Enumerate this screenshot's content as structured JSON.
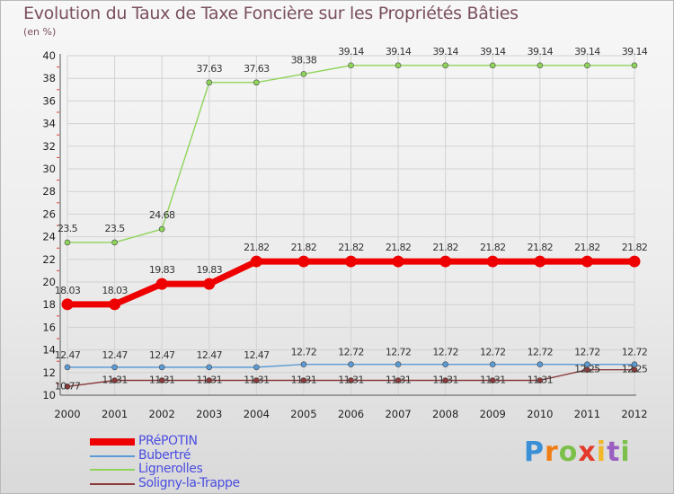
{
  "header": {
    "title": "Evolution du Taux de Taxe Foncière sur les Propriétés Bâties",
    "unit": "(en %)"
  },
  "brand": {
    "letters": [
      "P",
      "r",
      "o",
      "x",
      "i",
      "t",
      "i"
    ],
    "colors": [
      "#3a8fd6",
      "#f07d14",
      "#7cc04a",
      "#e23a2b",
      "#f0b82a",
      "#9a5fc0",
      "#7cc04a"
    ]
  },
  "colors": {
    "grid": "#d2d2d2",
    "axis_text": "#222222",
    "label_text": "#333333"
  },
  "chart_data": {
    "type": "line",
    "title": "Evolution du Taux de Taxe Foncière sur les Propriétés Bâties",
    "ylabel": "(en %)",
    "xlabel": "",
    "ylim": [
      10,
      40
    ],
    "yticks": [
      10,
      12,
      14,
      16,
      18,
      20,
      22,
      24,
      26,
      28,
      30,
      32,
      34,
      36,
      38,
      40
    ],
    "categories": [
      "2000",
      "2001",
      "2002",
      "2003",
      "2004",
      "2005",
      "2006",
      "2007",
      "2008",
      "2009",
      "2010",
      "2011",
      "2012"
    ],
    "grid": true,
    "legend_position": "bottom-left",
    "series": [
      {
        "name": "PRéPOTIN",
        "color": "#ee0000",
        "values": [
          18.03,
          18.03,
          19.83,
          19.83,
          21.82,
          21.82,
          21.82,
          21.82,
          21.82,
          21.82,
          21.82,
          21.82,
          21.82
        ],
        "labels": [
          "18.03",
          "18.03",
          "19.83",
          "19.83",
          "21.82",
          "21.82",
          "21.82",
          "21.82",
          "21.82",
          "21.82",
          "21.82",
          "21.82",
          "21.82"
        ]
      },
      {
        "name": "Bubertré",
        "color": "#5b9bd5",
        "values": [
          12.47,
          12.47,
          12.47,
          12.47,
          12.47,
          12.72,
          12.72,
          12.72,
          12.72,
          12.72,
          12.72,
          12.72,
          12.72
        ],
        "labels": [
          "12.47",
          "12.47",
          "12.47",
          "12.47",
          "12.47",
          "12.72",
          "12.72",
          "12.72",
          "12.72",
          "12.72",
          "12.72",
          "12.72",
          "12.72"
        ]
      },
      {
        "name": "Lignerolles",
        "color": "#8fd45a",
        "values": [
          23.5,
          23.5,
          24.68,
          37.63,
          37.63,
          38.38,
          39.14,
          39.14,
          39.14,
          39.14,
          39.14,
          39.14,
          39.14
        ],
        "labels": [
          "23.5",
          "23.5",
          "24.68",
          "37.63",
          "37.63",
          "38.38",
          "39.14",
          "39.14",
          "39.14",
          "39.14",
          "39.14",
          "39.14",
          "39.14"
        ]
      },
      {
        "name": "Soligny-la-Trappe",
        "color": "#8a3a3a",
        "values": [
          10.77,
          11.31,
          11.31,
          11.31,
          11.31,
          11.31,
          11.31,
          11.31,
          11.31,
          11.31,
          11.31,
          12.25,
          12.25
        ],
        "labels": [
          "10.77",
          "11.31",
          "11.31",
          "11.31",
          "11.31",
          "11.31",
          "11.31",
          "11.31",
          "11.31",
          "11.31",
          "11.31",
          "12.25",
          "12.25"
        ]
      }
    ]
  }
}
